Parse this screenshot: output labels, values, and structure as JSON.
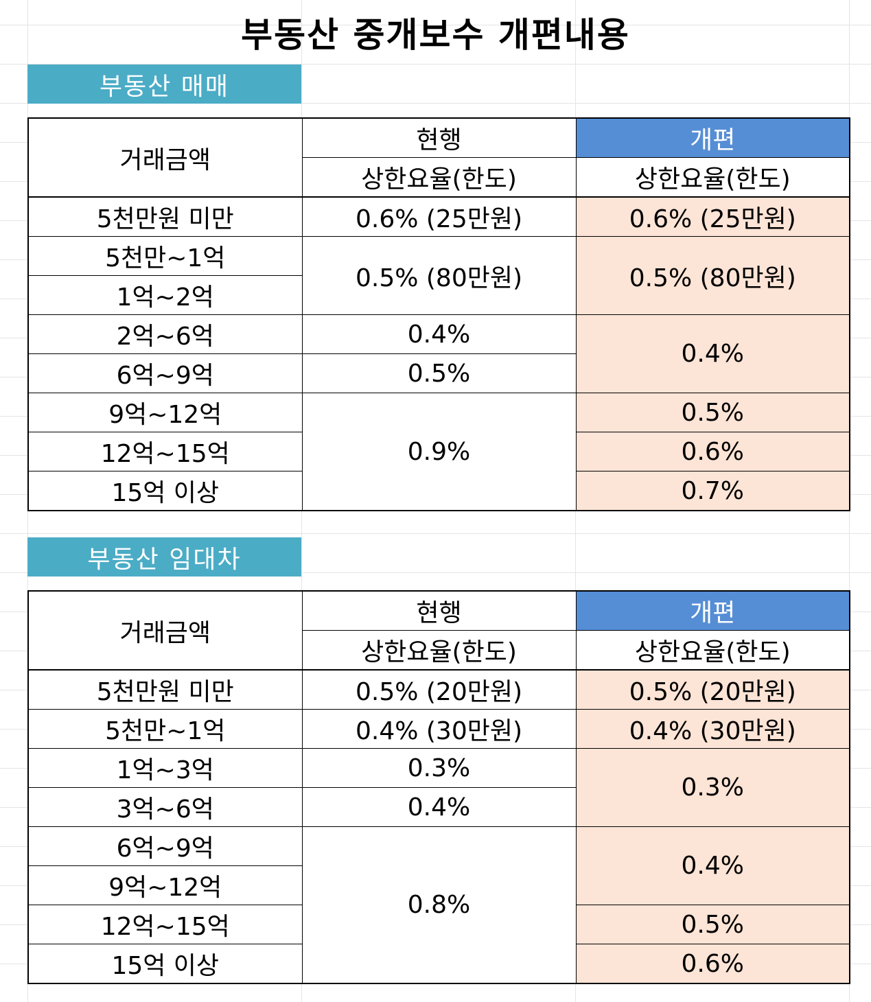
{
  "title": "부동산 중개보수 개편내용",
  "headers": {
    "amount": "거래금액",
    "current": "현행",
    "revised": "개편",
    "rate": "상한요율(한도)"
  },
  "sale": {
    "label": "부동산 매매",
    "amounts": [
      "5천만원 미만",
      "5천만~1억",
      "1억~2억",
      "2억~6억",
      "6억~9억",
      "9억~12억",
      "12억~15억",
      "15억 이상"
    ],
    "current": [
      "0.6% (25만원)",
      "0.5% (80만원)",
      "0.4%",
      "0.5%",
      "0.9%"
    ],
    "revised": [
      "0.6% (25만원)",
      "0.5% (80만원)",
      "0.4%",
      "0.5%",
      "0.6%",
      "0.7%"
    ]
  },
  "lease": {
    "label": "부동산 임대차",
    "amounts": [
      "5천만원 미만",
      "5천만~1억",
      "1억~3억",
      "3억~6억",
      "6억~9억",
      "9억~12억",
      "12억~15억",
      "15억 이상"
    ],
    "current": [
      "0.5% (20만원)",
      "0.4% (30만원)",
      "0.3%",
      "0.4%",
      "0.8%"
    ],
    "revised": [
      "0.5% (20만원)",
      "0.4% (30만원)",
      "0.3%",
      "0.4%",
      "0.5%",
      "0.6%"
    ]
  },
  "colors": {
    "section_label_bg": "#4bacc6",
    "revised_header_bg": "#558ed5",
    "revised_cell_bg": "#fce4d6"
  }
}
